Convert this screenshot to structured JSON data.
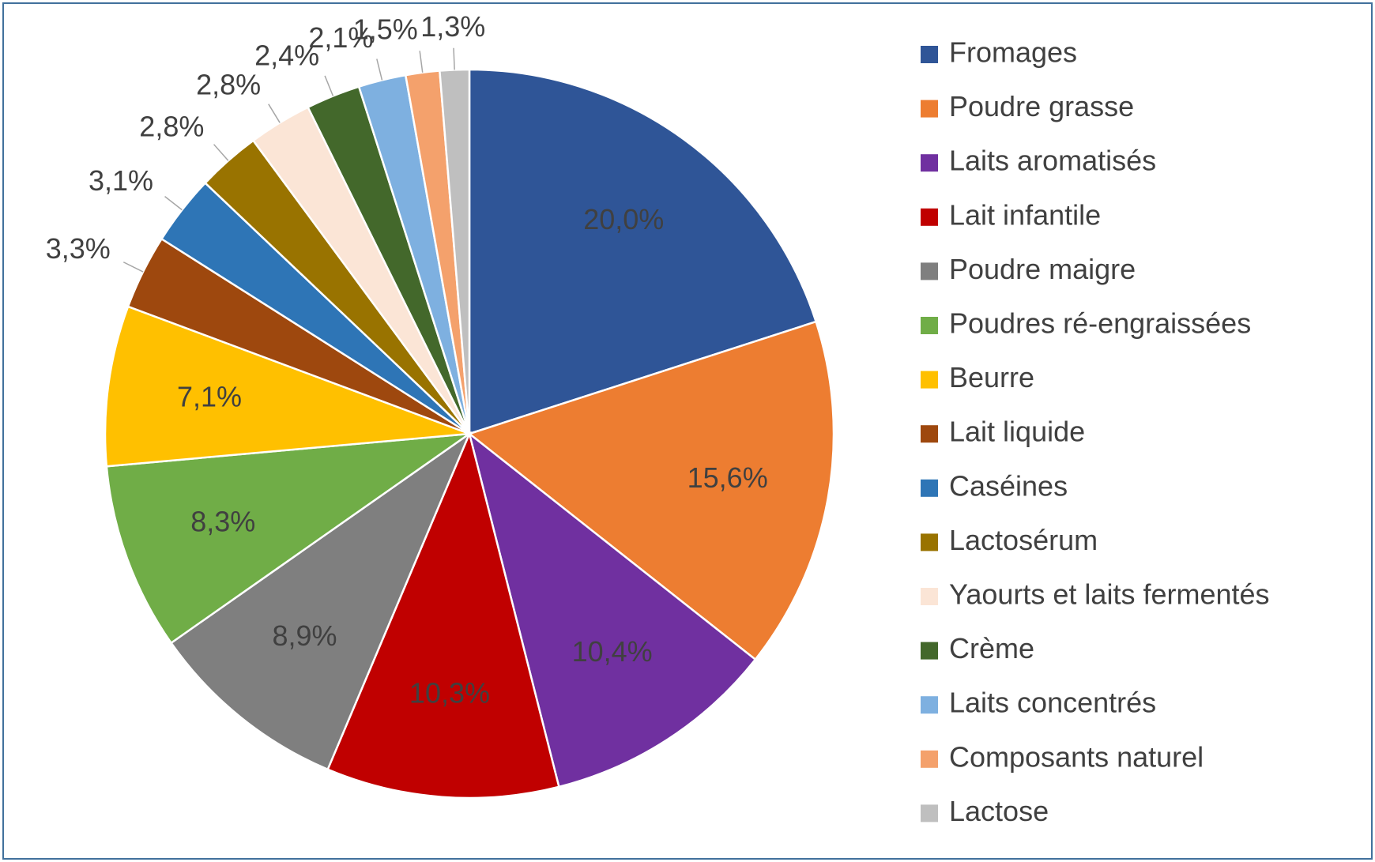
{
  "chart_data": {
    "type": "pie",
    "categories": [
      "Fromages",
      "Poudre grasse",
      "Laits aromatisés",
      "Lait infantile",
      "Poudre maigre",
      "Poudres ré-engraissées",
      "Beurre",
      "Lait liquide",
      "Caséines",
      "Lactosérum",
      "Yaourts et laits fermentés",
      "Crème",
      "Laits concentrés",
      "Composants naturel",
      "Lactose"
    ],
    "values": [
      20.0,
      15.6,
      10.4,
      10.3,
      8.9,
      8.3,
      7.1,
      3.3,
      3.1,
      2.8,
      2.8,
      2.4,
      2.1,
      1.5,
      1.3
    ],
    "value_labels": [
      "20,0%",
      "15,6%",
      "10,4%",
      "10,3%",
      "8,9%",
      "8,3%",
      "7,1%",
      "3,3%",
      "3,1%",
      "2,8%",
      "2,8%",
      "2,4%",
      "2,1%",
      "1,5%",
      "1,3%"
    ],
    "colors": [
      "#2f5597",
      "#ed7d31",
      "#7030a0",
      "#c00000",
      "#7f7f7f",
      "#70ad47",
      "#ffc000",
      "#9e480e",
      "#2e75b6",
      "#997300",
      "#fbe5d6",
      "#43682b",
      "#7eb0e0",
      "#f4a16c",
      "#bfbfbf"
    ],
    "legend": "right"
  }
}
